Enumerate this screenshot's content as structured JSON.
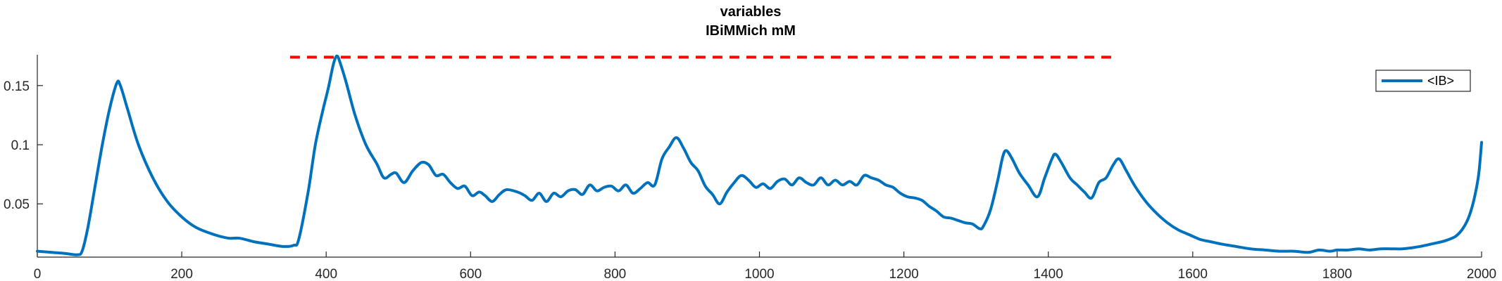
{
  "chart_data": {
    "type": "line",
    "title": "variables",
    "subtitle": "IBiMMich mM",
    "xlabel": "",
    "ylabel": "",
    "xlim": [
      0,
      2000
    ],
    "ylim": [
      0.005,
      0.176
    ],
    "xticks": [
      0,
      200,
      400,
      600,
      800,
      1000,
      1200,
      1400,
      1600,
      1800,
      2000
    ],
    "xtick_labels": [
      "0",
      "200",
      "400",
      "600",
      "800",
      "1000",
      "1200",
      "1400",
      "1600",
      "1800",
      "2000"
    ],
    "yticks": [
      0.05,
      0.1,
      0.15
    ],
    "ytick_labels": [
      "0.05",
      "0.1",
      "0.15"
    ],
    "grid": false,
    "legend_position": "top-right",
    "colors": {
      "series": "#0072BD",
      "threshold": "#FF0000",
      "axis": "#262626"
    },
    "threshold": {
      "y": 0.174,
      "x_start": 350,
      "x_end": 1490,
      "style": "dashed"
    },
    "series": [
      {
        "name": "<IB>",
        "points": [
          [
            0,
            0.01
          ],
          [
            20,
            0.009
          ],
          [
            40,
            0.008
          ],
          [
            55,
            0.007
          ],
          [
            62,
            0.01
          ],
          [
            70,
            0.03
          ],
          [
            80,
            0.065
          ],
          [
            90,
            0.1
          ],
          [
            100,
            0.13
          ],
          [
            110,
            0.152
          ],
          [
            115,
            0.15
          ],
          [
            125,
            0.13
          ],
          [
            140,
            0.1
          ],
          [
            160,
            0.072
          ],
          [
            180,
            0.052
          ],
          [
            200,
            0.039
          ],
          [
            220,
            0.03
          ],
          [
            245,
            0.024
          ],
          [
            265,
            0.021
          ],
          [
            280,
            0.021
          ],
          [
            300,
            0.018
          ],
          [
            320,
            0.016
          ],
          [
            340,
            0.014
          ],
          [
            355,
            0.015
          ],
          [
            362,
            0.02
          ],
          [
            375,
            0.06
          ],
          [
            385,
            0.1
          ],
          [
            395,
            0.128
          ],
          [
            403,
            0.148
          ],
          [
            410,
            0.168
          ],
          [
            415,
            0.175
          ],
          [
            420,
            0.168
          ],
          [
            428,
            0.152
          ],
          [
            440,
            0.125
          ],
          [
            455,
            0.1
          ],
          [
            470,
            0.084
          ],
          [
            480,
            0.072
          ],
          [
            490,
            0.075
          ],
          [
            497,
            0.076
          ],
          [
            508,
            0.068
          ],
          [
            520,
            0.078
          ],
          [
            532,
            0.085
          ],
          [
            542,
            0.083
          ],
          [
            552,
            0.074
          ],
          [
            562,
            0.075
          ],
          [
            572,
            0.068
          ],
          [
            582,
            0.063
          ],
          [
            592,
            0.065
          ],
          [
            602,
            0.057
          ],
          [
            612,
            0.06
          ],
          [
            620,
            0.057
          ],
          [
            630,
            0.052
          ],
          [
            640,
            0.058
          ],
          [
            650,
            0.062
          ],
          [
            665,
            0.06
          ],
          [
            675,
            0.057
          ],
          [
            685,
            0.053
          ],
          [
            695,
            0.059
          ],
          [
            705,
            0.052
          ],
          [
            715,
            0.059
          ],
          [
            725,
            0.056
          ],
          [
            735,
            0.061
          ],
          [
            745,
            0.062
          ],
          [
            755,
            0.058
          ],
          [
            765,
            0.066
          ],
          [
            775,
            0.061
          ],
          [
            785,
            0.064
          ],
          [
            795,
            0.065
          ],
          [
            805,
            0.061
          ],
          [
            815,
            0.066
          ],
          [
            825,
            0.059
          ],
          [
            835,
            0.063
          ],
          [
            845,
            0.068
          ],
          [
            855,
            0.066
          ],
          [
            865,
            0.088
          ],
          [
            875,
            0.098
          ],
          [
            885,
            0.106
          ],
          [
            895,
            0.097
          ],
          [
            905,
            0.085
          ],
          [
            915,
            0.078
          ],
          [
            925,
            0.065
          ],
          [
            935,
            0.058
          ],
          [
            945,
            0.05
          ],
          [
            955,
            0.06
          ],
          [
            965,
            0.068
          ],
          [
            975,
            0.074
          ],
          [
            985,
            0.07
          ],
          [
            995,
            0.064
          ],
          [
            1005,
            0.067
          ],
          [
            1015,
            0.063
          ],
          [
            1025,
            0.069
          ],
          [
            1035,
            0.071
          ],
          [
            1045,
            0.066
          ],
          [
            1055,
            0.072
          ],
          [
            1065,
            0.068
          ],
          [
            1075,
            0.066
          ],
          [
            1085,
            0.072
          ],
          [
            1095,
            0.066
          ],
          [
            1105,
            0.07
          ],
          [
            1115,
            0.066
          ],
          [
            1125,
            0.069
          ],
          [
            1135,
            0.066
          ],
          [
            1145,
            0.074
          ],
          [
            1155,
            0.072
          ],
          [
            1165,
            0.07
          ],
          [
            1175,
            0.066
          ],
          [
            1185,
            0.064
          ],
          [
            1195,
            0.059
          ],
          [
            1205,
            0.056
          ],
          [
            1215,
            0.055
          ],
          [
            1225,
            0.053
          ],
          [
            1235,
            0.048
          ],
          [
            1245,
            0.044
          ],
          [
            1255,
            0.039
          ],
          [
            1265,
            0.038
          ],
          [
            1275,
            0.036
          ],
          [
            1285,
            0.034
          ],
          [
            1295,
            0.033
          ],
          [
            1305,
            0.029
          ],
          [
            1310,
            0.031
          ],
          [
            1320,
            0.045
          ],
          [
            1330,
            0.07
          ],
          [
            1337,
            0.09
          ],
          [
            1342,
            0.095
          ],
          [
            1350,
            0.088
          ],
          [
            1360,
            0.076
          ],
          [
            1372,
            0.066
          ],
          [
            1385,
            0.056
          ],
          [
            1395,
            0.072
          ],
          [
            1405,
            0.088
          ],
          [
            1410,
            0.092
          ],
          [
            1418,
            0.085
          ],
          [
            1430,
            0.072
          ],
          [
            1440,
            0.066
          ],
          [
            1450,
            0.06
          ],
          [
            1460,
            0.055
          ],
          [
            1470,
            0.068
          ],
          [
            1480,
            0.072
          ],
          [
            1490,
            0.083
          ],
          [
            1498,
            0.088
          ],
          [
            1508,
            0.078
          ],
          [
            1520,
            0.065
          ],
          [
            1535,
            0.052
          ],
          [
            1550,
            0.042
          ],
          [
            1565,
            0.034
          ],
          [
            1580,
            0.028
          ],
          [
            1595,
            0.024
          ],
          [
            1610,
            0.02
          ],
          [
            1625,
            0.018
          ],
          [
            1640,
            0.016
          ],
          [
            1660,
            0.014
          ],
          [
            1680,
            0.012
          ],
          [
            1700,
            0.011
          ],
          [
            1720,
            0.01
          ],
          [
            1740,
            0.01
          ],
          [
            1760,
            0.009
          ],
          [
            1775,
            0.011
          ],
          [
            1790,
            0.01
          ],
          [
            1800,
            0.011
          ],
          [
            1815,
            0.011
          ],
          [
            1830,
            0.012
          ],
          [
            1845,
            0.011
          ],
          [
            1860,
            0.012
          ],
          [
            1875,
            0.012
          ],
          [
            1890,
            0.012
          ],
          [
            1905,
            0.013
          ],
          [
            1915,
            0.014
          ],
          [
            1930,
            0.016
          ],
          [
            1945,
            0.018
          ],
          [
            1955,
            0.02
          ],
          [
            1965,
            0.023
          ],
          [
            1975,
            0.03
          ],
          [
            1983,
            0.04
          ],
          [
            1990,
            0.055
          ],
          [
            1996,
            0.075
          ],
          [
            2000,
            0.102
          ]
        ]
      }
    ]
  }
}
